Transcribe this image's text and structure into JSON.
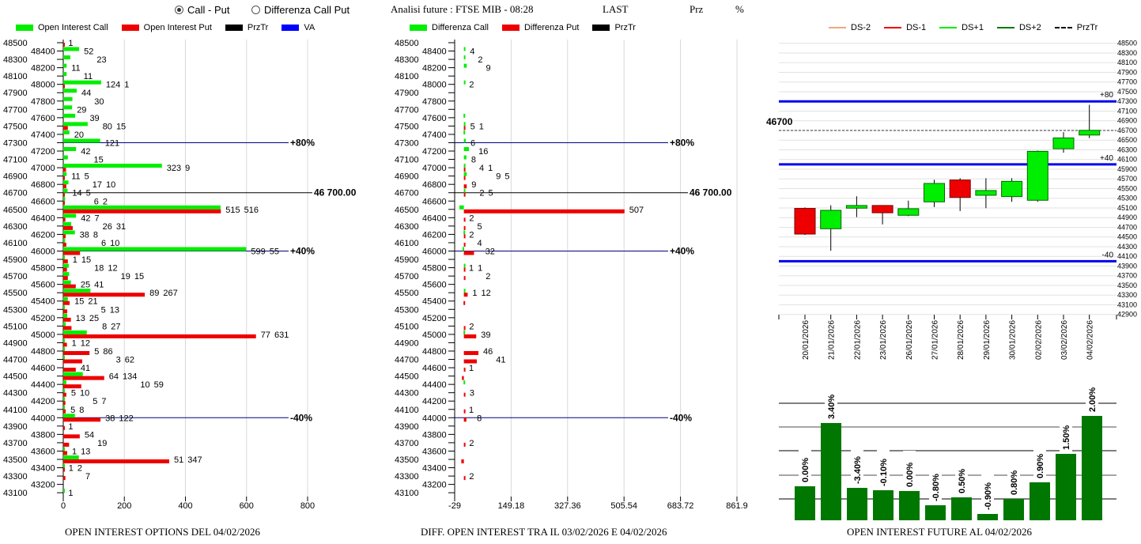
{
  "header": {
    "radio_call_put": "Call - Put",
    "radio_diff": "Differenza Call Put",
    "selected": "Call - Put",
    "title": "Analisi future : FTSE MIB - 08:28",
    "last_label": "LAST",
    "prz_label": "Prz",
    "pct_label": "%"
  },
  "colors": {
    "call": "#00ee00",
    "put": "#ee0000",
    "przTr": "#000000",
    "va": "#0000ff",
    "bar": "#007700",
    "ds_minus2": "#f4a582",
    "ds_plus2": "#007700"
  },
  "chart_data": [
    {
      "type": "bar",
      "orientation": "horizontal",
      "title": "OPEN INTEREST OPTIONS DEL 04/02/2026",
      "legend": [
        "Open Interest Call",
        "Open Interest Put",
        "PrzTr",
        "VA"
      ],
      "xlim": [
        0,
        800
      ],
      "xticks": [
        "0",
        "200",
        "400",
        "600",
        "800"
      ],
      "strikes": [
        48500,
        48400,
        48300,
        48200,
        48100,
        48000,
        47900,
        47800,
        47700,
        47600,
        47500,
        47400,
        47300,
        47200,
        47100,
        47000,
        46900,
        46800,
        46700,
        46600,
        46500,
        46400,
        46300,
        46200,
        46100,
        46000,
        45900,
        45800,
        45700,
        45600,
        45500,
        45400,
        45300,
        45200,
        45100,
        45000,
        44900,
        44800,
        44700,
        44600,
        44500,
        44400,
        44300,
        44200,
        44100,
        44000,
        43900,
        43800,
        43700,
        43600,
        43500,
        43400,
        43300,
        43200,
        43100
      ],
      "series": [
        {
          "name": "Open Interest Call",
          "values": [
            0,
            52,
            23,
            11,
            11,
            124,
            44,
            30,
            29,
            39,
            80,
            20,
            121,
            42,
            15,
            323,
            11,
            17,
            14,
            6,
            515,
            42,
            26,
            38,
            6,
            599,
            1,
            18,
            19,
            25,
            89,
            15,
            5,
            13,
            8,
            77,
            1,
            5,
            3,
            0,
            64,
            10,
            5,
            5,
            5,
            38,
            0,
            0,
            0,
            1,
            51,
            1,
            0,
            0,
            1
          ]
        },
        {
          "name": "Open Interest Put",
          "values": [
            1,
            0,
            0,
            0,
            0,
            1,
            0,
            0,
            0,
            0,
            15,
            0,
            0,
            0,
            0,
            9,
            5,
            10,
            5,
            2,
            516,
            7,
            31,
            8,
            10,
            55,
            15,
            12,
            15,
            41,
            267,
            21,
            13,
            25,
            27,
            631,
            12,
            86,
            62,
            41,
            134,
            59,
            10,
            7,
            8,
            122,
            1,
            54,
            19,
            13,
            347,
            2,
            7,
            0,
            0
          ]
        }
      ],
      "ref_lines": [
        {
          "value": 47300,
          "label": "+80%",
          "kind": "va"
        },
        {
          "value": 46700,
          "label": "46 700.00",
          "kind": "przTr"
        },
        {
          "value": 46000,
          "label": "+40%",
          "kind": "va"
        },
        {
          "value": 44000,
          "label": "-40%",
          "kind": "va"
        }
      ]
    },
    {
      "type": "bar",
      "orientation": "horizontal",
      "title": "DIFF. OPEN INTEREST TRA IL 03/02/2026 E 04/02/2026",
      "legend": [
        "Differenza Call",
        "Differenza Put",
        "PrzTr"
      ],
      "xlim": [
        -29,
        861.9
      ],
      "xticks": [
        "-29",
        "149.18",
        "327.36",
        "505.54",
        "683.72",
        "861.9"
      ],
      "strikes": [
        48400,
        48300,
        48200,
        48000,
        47600,
        47500,
        47400,
        47300,
        47200,
        47100,
        47000,
        46900,
        46800,
        46700,
        46500,
        46400,
        46300,
        46200,
        46100,
        46000,
        45800,
        45700,
        45500,
        45400,
        45100,
        45000,
        44800,
        44700,
        44600,
        44500,
        44400,
        44300,
        44100,
        44000,
        43700,
        43500,
        43300
      ],
      "series": [
        {
          "name": "Differenza Call",
          "values": [
            4,
            2,
            9,
            2,
            -1,
            5,
            -1,
            6,
            16,
            8,
            4,
            9,
            0,
            2,
            -14,
            0,
            0,
            -1,
            0,
            -4,
            1,
            0,
            1,
            0,
            0,
            -1,
            0,
            0,
            0,
            0,
            -1,
            0,
            0,
            0,
            0,
            0,
            0
          ]
        },
        {
          "name": "Differenza Put",
          "values": [
            0,
            0,
            0,
            0,
            0,
            1,
            0,
            0,
            0,
            0,
            1,
            5,
            9,
            5,
            507,
            2,
            5,
            2,
            4,
            32,
            1,
            2,
            12,
            -1,
            2,
            39,
            46,
            41,
            1,
            -6,
            0,
            3,
            1,
            8,
            2,
            -8,
            2
          ]
        }
      ],
      "ref_lines": [
        {
          "value": 47300,
          "label": "+80%",
          "kind": "va"
        },
        {
          "value": 46700,
          "label": "46 700.00",
          "kind": "przTr"
        },
        {
          "value": 46000,
          "label": "+40%",
          "kind": "va"
        },
        {
          "value": 44000,
          "label": "-40%",
          "kind": "va"
        }
      ]
    },
    {
      "type": "candlestick",
      "legend": [
        "DS-2",
        "DS-1",
        "DS+1",
        "DS+2",
        "PrzTr"
      ],
      "ylim": [
        42900,
        48500
      ],
      "yticks": [
        48500,
        48300,
        48100,
        47900,
        47700,
        47500,
        47300,
        47100,
        46900,
        46700,
        46500,
        46300,
        46100,
        45900,
        45700,
        45500,
        45300,
        45100,
        44900,
        44700,
        44500,
        44300,
        44100,
        43900,
        43700,
        43500,
        43300,
        43100,
        42900
      ],
      "dates": [
        "20/01/2026",
        "21/01/2026",
        "22/01/2026",
        "23/01/2026",
        "26/01/2026",
        "27/01/2026",
        "28/01/2026",
        "29/01/2026",
        "30/01/2026",
        "02/02/2026",
        "03/02/2026",
        "04/02/2026"
      ],
      "open": [
        45090,
        44670,
        45095,
        45150,
        44948,
        45225,
        45676,
        45361,
        45334,
        45258,
        46322,
        46605
      ],
      "high": [
        45110,
        45155,
        45340,
        45150,
        45250,
        45680,
        45714,
        45714,
        45714,
        46284,
        46664,
        47229
      ],
      "low": [
        44540,
        44215,
        44910,
        44760,
        44930,
        45117,
        45035,
        45095,
        45225,
        45225,
        46241,
        46540
      ],
      "close": [
        44560,
        45050,
        45150,
        45000,
        45084,
        45605,
        45317,
        45459,
        45649,
        46268,
        46545,
        46702
      ],
      "przTr": {
        "value": 46700,
        "label": "46700"
      },
      "levels": [
        {
          "value": 47300,
          "label": "+80"
        },
        {
          "value": 46000,
          "label": "+40"
        },
        {
          "value": 44000,
          "label": "-40"
        }
      ]
    },
    {
      "type": "bar",
      "title": "OPEN INTEREST FUTURE AL 04/02/2026",
      "categories": [
        "20/01/2026",
        "21/01/2026",
        "22/01/2026",
        "23/01/2026",
        "26/01/2026",
        "27/01/2026",
        "28/01/2026",
        "29/01/2026",
        "30/01/2026",
        "02/02/2026",
        "03/02/2026",
        "04/02/2026"
      ],
      "relative_values": [
        43,
        123,
        41,
        38,
        37,
        19,
        29,
        8,
        27,
        48,
        84,
        132
      ],
      "labels": [
        "0.00%",
        "3.40%",
        "-3.40%",
        "-0.10%",
        "0.00%",
        "-0.80%",
        "0.50%",
        "-0.90%",
        "0.80%",
        "0.90%",
        "1.50%",
        "2.00%"
      ]
    }
  ]
}
